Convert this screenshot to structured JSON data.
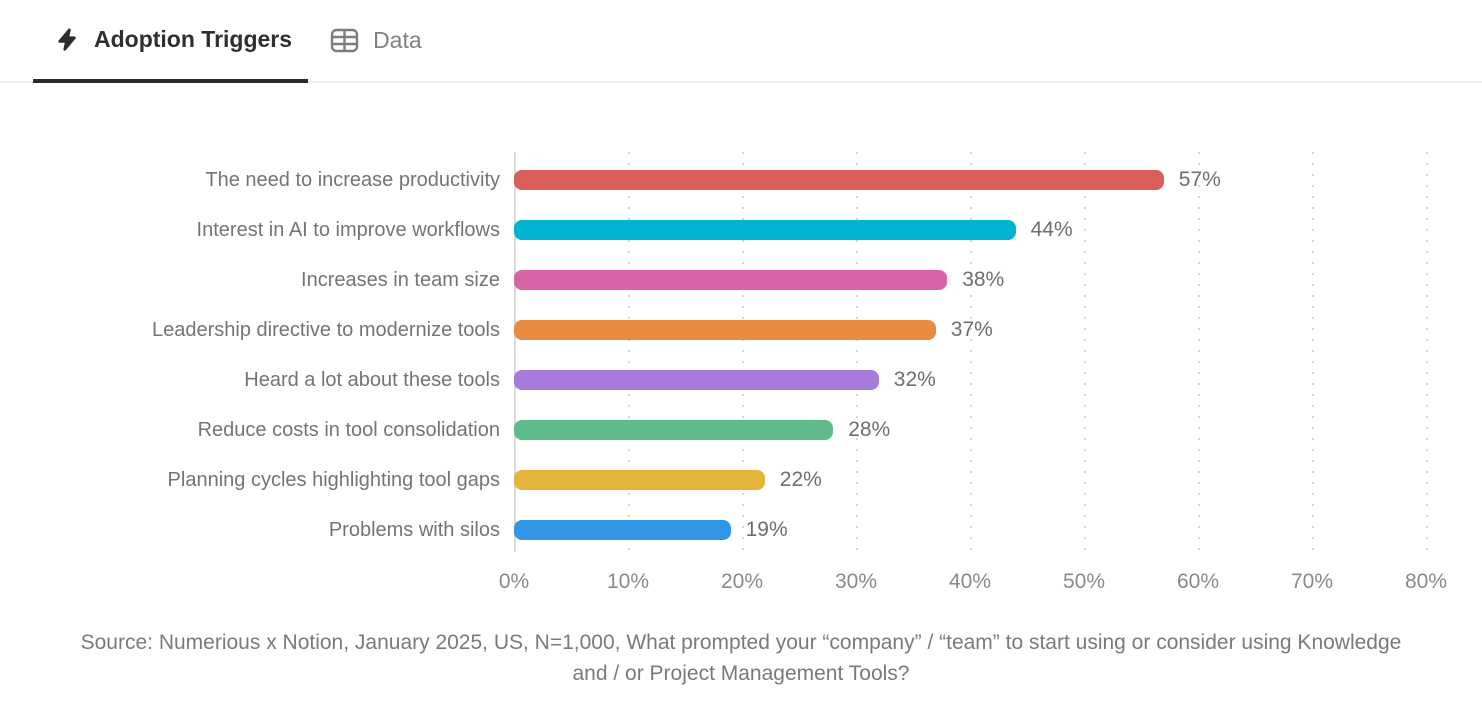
{
  "tabs": [
    {
      "label": "Adoption Triggers",
      "icon": "lightning-icon",
      "active": true
    },
    {
      "label": "Data",
      "icon": "table-icon",
      "active": false
    }
  ],
  "chart_data": {
    "type": "bar",
    "orientation": "horizontal",
    "title": "Adoption Triggers",
    "categories": [
      "The need to increase productivity",
      "Interest in AI to improve workflows",
      "Increases in team size",
      "Leadership directive to modernize tools",
      "Heard a lot about these tools",
      "Reduce costs in tool consolidation",
      "Planning cycles highlighting tool gaps",
      "Problems with silos"
    ],
    "values": [
      57,
      44,
      38,
      37,
      32,
      28,
      22,
      19
    ],
    "value_labels": [
      "57%",
      "44%",
      "38%",
      "37%",
      "32%",
      "28%",
      "22%",
      "19%"
    ],
    "bar_colors": [
      "#D95F58",
      "#00B3CE",
      "#D863A7",
      "#E88B3E",
      "#A77BDB",
      "#5FBB8A",
      "#E5B43B",
      "#3096E5"
    ],
    "x_ticks": [
      "0%",
      "10%",
      "20%",
      "30%",
      "40%",
      "50%",
      "60%",
      "70%",
      "80%"
    ],
    "xlim": [
      0,
      80
    ],
    "xlabel": "",
    "ylabel": "",
    "grid": "vertical-dotted",
    "legend": "none"
  },
  "source_note": "Source: Numerious x Notion, January 2025, US, N=1,000, What prompted your “company” / “team” to start using or consider using Knowledge and / or Project Management Tools?",
  "colors": {
    "tab_active_text": "#2f2f2c",
    "tab_inactive_text": "#80807e",
    "tab_underline": "#2b2b28",
    "tab_bar_border": "#ebebe9",
    "category_label_text": "#767472",
    "value_label_text": "#6f6e6c",
    "tick_label_text": "#8b8a88",
    "source_text": "#7b7a77",
    "gridline": "#d7d6d4",
    "background": "#ffffff"
  }
}
